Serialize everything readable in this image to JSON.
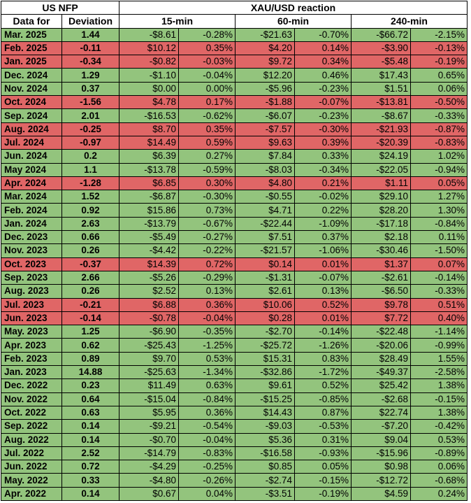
{
  "header": {
    "nfp_title": "US NFP",
    "reaction_title": "XAU/USD reaction",
    "col_date": "Data for",
    "col_deviation": "Deviation",
    "col_15": "15-min",
    "col_60": "60-min",
    "col_240": "240-min"
  },
  "colors": {
    "positive": "#93c47d",
    "negative": "#e06666"
  },
  "rows": [
    {
      "date": "Mar. 2025",
      "dev": "1.44",
      "d15": "-$8.61",
      "p15": "-0.28%",
      "d60": "-$21.63",
      "p60": "-0.70%",
      "d240": "-$66.72",
      "p240": "-2.15%",
      "state": "pos"
    },
    {
      "date": "Feb. 2025",
      "dev": "-0.11",
      "d15": "$10.12",
      "p15": "0.35%",
      "d60": "$4.20",
      "p60": "0.14%",
      "d240": "-$3.90",
      "p240": "-0.13%",
      "state": "neg"
    },
    {
      "date": "Jan. 2025",
      "dev": "-0.34",
      "d15": "-$0.82",
      "p15": "-0.03%",
      "d60": "$9.72",
      "p60": "0.34%",
      "d240": "-$5.48",
      "p240": "-0.19%",
      "state": "neg"
    },
    {
      "date": "Dec. 2024",
      "dev": "1.29",
      "d15": "-$1.10",
      "p15": "-0.04%",
      "d60": "$12.20",
      "p60": "0.46%",
      "d240": "$17.43",
      "p240": "0.65%",
      "state": "pos"
    },
    {
      "date": "Nov. 2024",
      "dev": "0.37",
      "d15": "$0.00",
      "p15": "0.00%",
      "d60": "-$5.96",
      "p60": "-0.23%",
      "d240": "$1.51",
      "p240": "0.06%",
      "state": "pos"
    },
    {
      "date": "Oct. 2024",
      "dev": "-1.56",
      "d15": "$4.78",
      "p15": "0.17%",
      "d60": "-$1.88",
      "p60": "-0.07%",
      "d240": "-$13.81",
      "p240": "-0.50%",
      "state": "neg"
    },
    {
      "date": "Sep. 2024",
      "dev": "2.01",
      "d15": "-$16.53",
      "p15": "-0.62%",
      "d60": "-$6.07",
      "p60": "-0.23%",
      "d240": "-$8.67",
      "p240": "-0.33%",
      "state": "pos"
    },
    {
      "date": "Aug. 2024",
      "dev": "-0.25",
      "d15": "$8.70",
      "p15": "0.35%",
      "d60": "-$7.57",
      "p60": "-0.30%",
      "d240": "-$21.93",
      "p240": "-0.87%",
      "state": "neg"
    },
    {
      "date": "Jul. 2024",
      "dev": "-0.97",
      "d15": "$14.49",
      "p15": "0.59%",
      "d60": "$9.63",
      "p60": "0.39%",
      "d240": "-$20.39",
      "p240": "-0.83%",
      "state": "neg"
    },
    {
      "date": "Jun. 2024",
      "dev": "0.2",
      "d15": "$6.39",
      "p15": "0.27%",
      "d60": "$7.84",
      "p60": "0.33%",
      "d240": "$24.19",
      "p240": "1.02%",
      "state": "pos"
    },
    {
      "date": "May 2024",
      "dev": "1.1",
      "d15": "-$13.78",
      "p15": "-0.59%",
      "d60": "-$8.03",
      "p60": "-0.34%",
      "d240": "-$22.05",
      "p240": "-0.94%",
      "state": "pos"
    },
    {
      "date": "Apr. 2024",
      "dev": "-1.28",
      "d15": "$6.85",
      "p15": "0.30%",
      "d60": "$4.80",
      "p60": "0.21%",
      "d240": "$1.11",
      "p240": "0.05%",
      "state": "neg"
    },
    {
      "date": "Mar. 2024",
      "dev": "1.52",
      "d15": "-$6.87",
      "p15": "-0.30%",
      "d60": "-$0.55",
      "p60": "-0.02%",
      "d240": "$29.10",
      "p240": "1.27%",
      "state": "pos"
    },
    {
      "date": "Feb. 2024",
      "dev": "0.92",
      "d15": "$15.86",
      "p15": "0.73%",
      "d60": "$4.71",
      "p60": "0.22%",
      "d240": "$28.20",
      "p240": "1.30%",
      "state": "pos"
    },
    {
      "date": "Jan. 2024",
      "dev": "2.63",
      "d15": "-$13.79",
      "p15": "-0.67%",
      "d60": "-$22.44",
      "p60": "-1.09%",
      "d240": "-$17.18",
      "p240": "-0.84%",
      "state": "pos"
    },
    {
      "date": "Dec. 2023",
      "dev": "0.66",
      "d15": "-$5.49",
      "p15": "-0.27%",
      "d60": "$7.51",
      "p60": "0.37%",
      "d240": "$2.18",
      "p240": "0.11%",
      "state": "pos"
    },
    {
      "date": "Nov. 2023",
      "dev": "0.26",
      "d15": "-$4.42",
      "p15": "-0.22%",
      "d60": "-$21.57",
      "p60": "-1.06%",
      "d240": "-$30.46",
      "p240": "-1.50%",
      "state": "pos"
    },
    {
      "date": "Oct. 2023",
      "dev": "-0.37",
      "d15": "$14.39",
      "p15": "0.72%",
      "d60": "$0.14",
      "p60": "0.01%",
      "d240": "$1.37",
      "p240": "0.07%",
      "state": "neg"
    },
    {
      "date": "Sep. 2023",
      "dev": "2.66",
      "d15": "-$5.26",
      "p15": "-0.29%",
      "d60": "-$1.31",
      "p60": "-0.07%",
      "d240": "-$2.61",
      "p240": "-0.14%",
      "state": "pos"
    },
    {
      "date": "Aug. 2023",
      "dev": "0.26",
      "d15": "$2.52",
      "p15": "0.13%",
      "d60": "$2.61",
      "p60": "0.13%",
      "d240": "-$6.50",
      "p240": "-0.33%",
      "state": "pos"
    },
    {
      "date": "Jul. 2023",
      "dev": "-0.21",
      "d15": "$6.88",
      "p15": "0.36%",
      "d60": "$10.06",
      "p60": "0.52%",
      "d240": "$9.78",
      "p240": "0.51%",
      "state": "neg"
    },
    {
      "date": "Jun. 2023",
      "dev": "-0.14",
      "d15": "-$0.78",
      "p15": "-0.04%",
      "d60": "$0.28",
      "p60": "0.01%",
      "d240": "$7.72",
      "p240": "0.40%",
      "state": "neg"
    },
    {
      "date": "May. 2023",
      "dev": "1.25",
      "d15": "-$6.90",
      "p15": "-0.35%",
      "d60": "-$2.70",
      "p60": "-0.14%",
      "d240": "-$22.48",
      "p240": "-1.14%",
      "state": "pos"
    },
    {
      "date": "Apr. 2023",
      "dev": "0.62",
      "d15": "-$25.43",
      "p15": "-1.25%",
      "d60": "-$25.72",
      "p60": "-1.26%",
      "d240": "-$20.06",
      "p240": "-0.99%",
      "state": "pos"
    },
    {
      "date": "Feb. 2023",
      "dev": "0.89",
      "d15": "$9.70",
      "p15": "0.53%",
      "d60": "$15.31",
      "p60": "0.83%",
      "d240": "$28.49",
      "p240": "1.55%",
      "state": "pos"
    },
    {
      "date": "Jan. 2023",
      "dev": "14.88",
      "d15": "-$25.63",
      "p15": "-1.34%",
      "d60": "-$32.86",
      "p60": "-1.72%",
      "d240": "-$49.37",
      "p240": "-2.58%",
      "state": "pos"
    },
    {
      "date": "Dec. 2022",
      "dev": "0.23",
      "d15": "$11.49",
      "p15": "0.63%",
      "d60": "$9.61",
      "p60": "0.52%",
      "d240": "$25.42",
      "p240": "1.38%",
      "state": "pos"
    },
    {
      "date": "Nov. 2022",
      "dev": "0.64",
      "d15": "-$15.04",
      "p15": "-0.84%",
      "d60": "-$15.25",
      "p60": "-0.85%",
      "d240": "-$2.68",
      "p240": "-0.15%",
      "state": "pos"
    },
    {
      "date": "Oct. 2022",
      "dev": "0.63",
      "d15": "$5.95",
      "p15": "0.36%",
      "d60": "$14.43",
      "p60": "0.87%",
      "d240": "$22.74",
      "p240": "1.38%",
      "state": "pos"
    },
    {
      "date": "Sep. 2022",
      "dev": "0.14",
      "d15": "-$9.21",
      "p15": "-0.54%",
      "d60": "-$9.03",
      "p60": "-0.53%",
      "d240": "-$7.20",
      "p240": "-0.42%",
      "state": "pos"
    },
    {
      "date": "Aug. 2022",
      "dev": "0.14",
      "d15": "-$0.70",
      "p15": "-0.04%",
      "d60": "$5.36",
      "p60": "0.31%",
      "d240": "$9.04",
      "p240": "0.53%",
      "state": "pos"
    },
    {
      "date": "Jul. 2022",
      "dev": "2.52",
      "d15": "-$14.79",
      "p15": "-0.83%",
      "d60": "-$16.58",
      "p60": "-0.93%",
      "d240": "-$15.96",
      "p240": "-0.89%",
      "state": "pos"
    },
    {
      "date": "Jun. 2022",
      "dev": "0.72",
      "d15": "-$4.29",
      "p15": "-0.25%",
      "d60": "$0.85",
      "p60": "0.05%",
      "d240": "$0.98",
      "p240": "0.06%",
      "state": "pos"
    },
    {
      "date": "May. 2022",
      "dev": "0.33",
      "d15": "-$4.80",
      "p15": "-0.26%",
      "d60": "-$2.74",
      "p60": "-0.15%",
      "d240": "-$12.72",
      "p240": "-0.68%",
      "state": "pos"
    },
    {
      "date": "Apr. 2022",
      "dev": "0.14",
      "d15": "$0.67",
      "p15": "0.04%",
      "d60": "-$3.51",
      "p60": "-0.19%",
      "d240": "$4.59",
      "p240": "0.24%",
      "state": "pos"
    }
  ]
}
